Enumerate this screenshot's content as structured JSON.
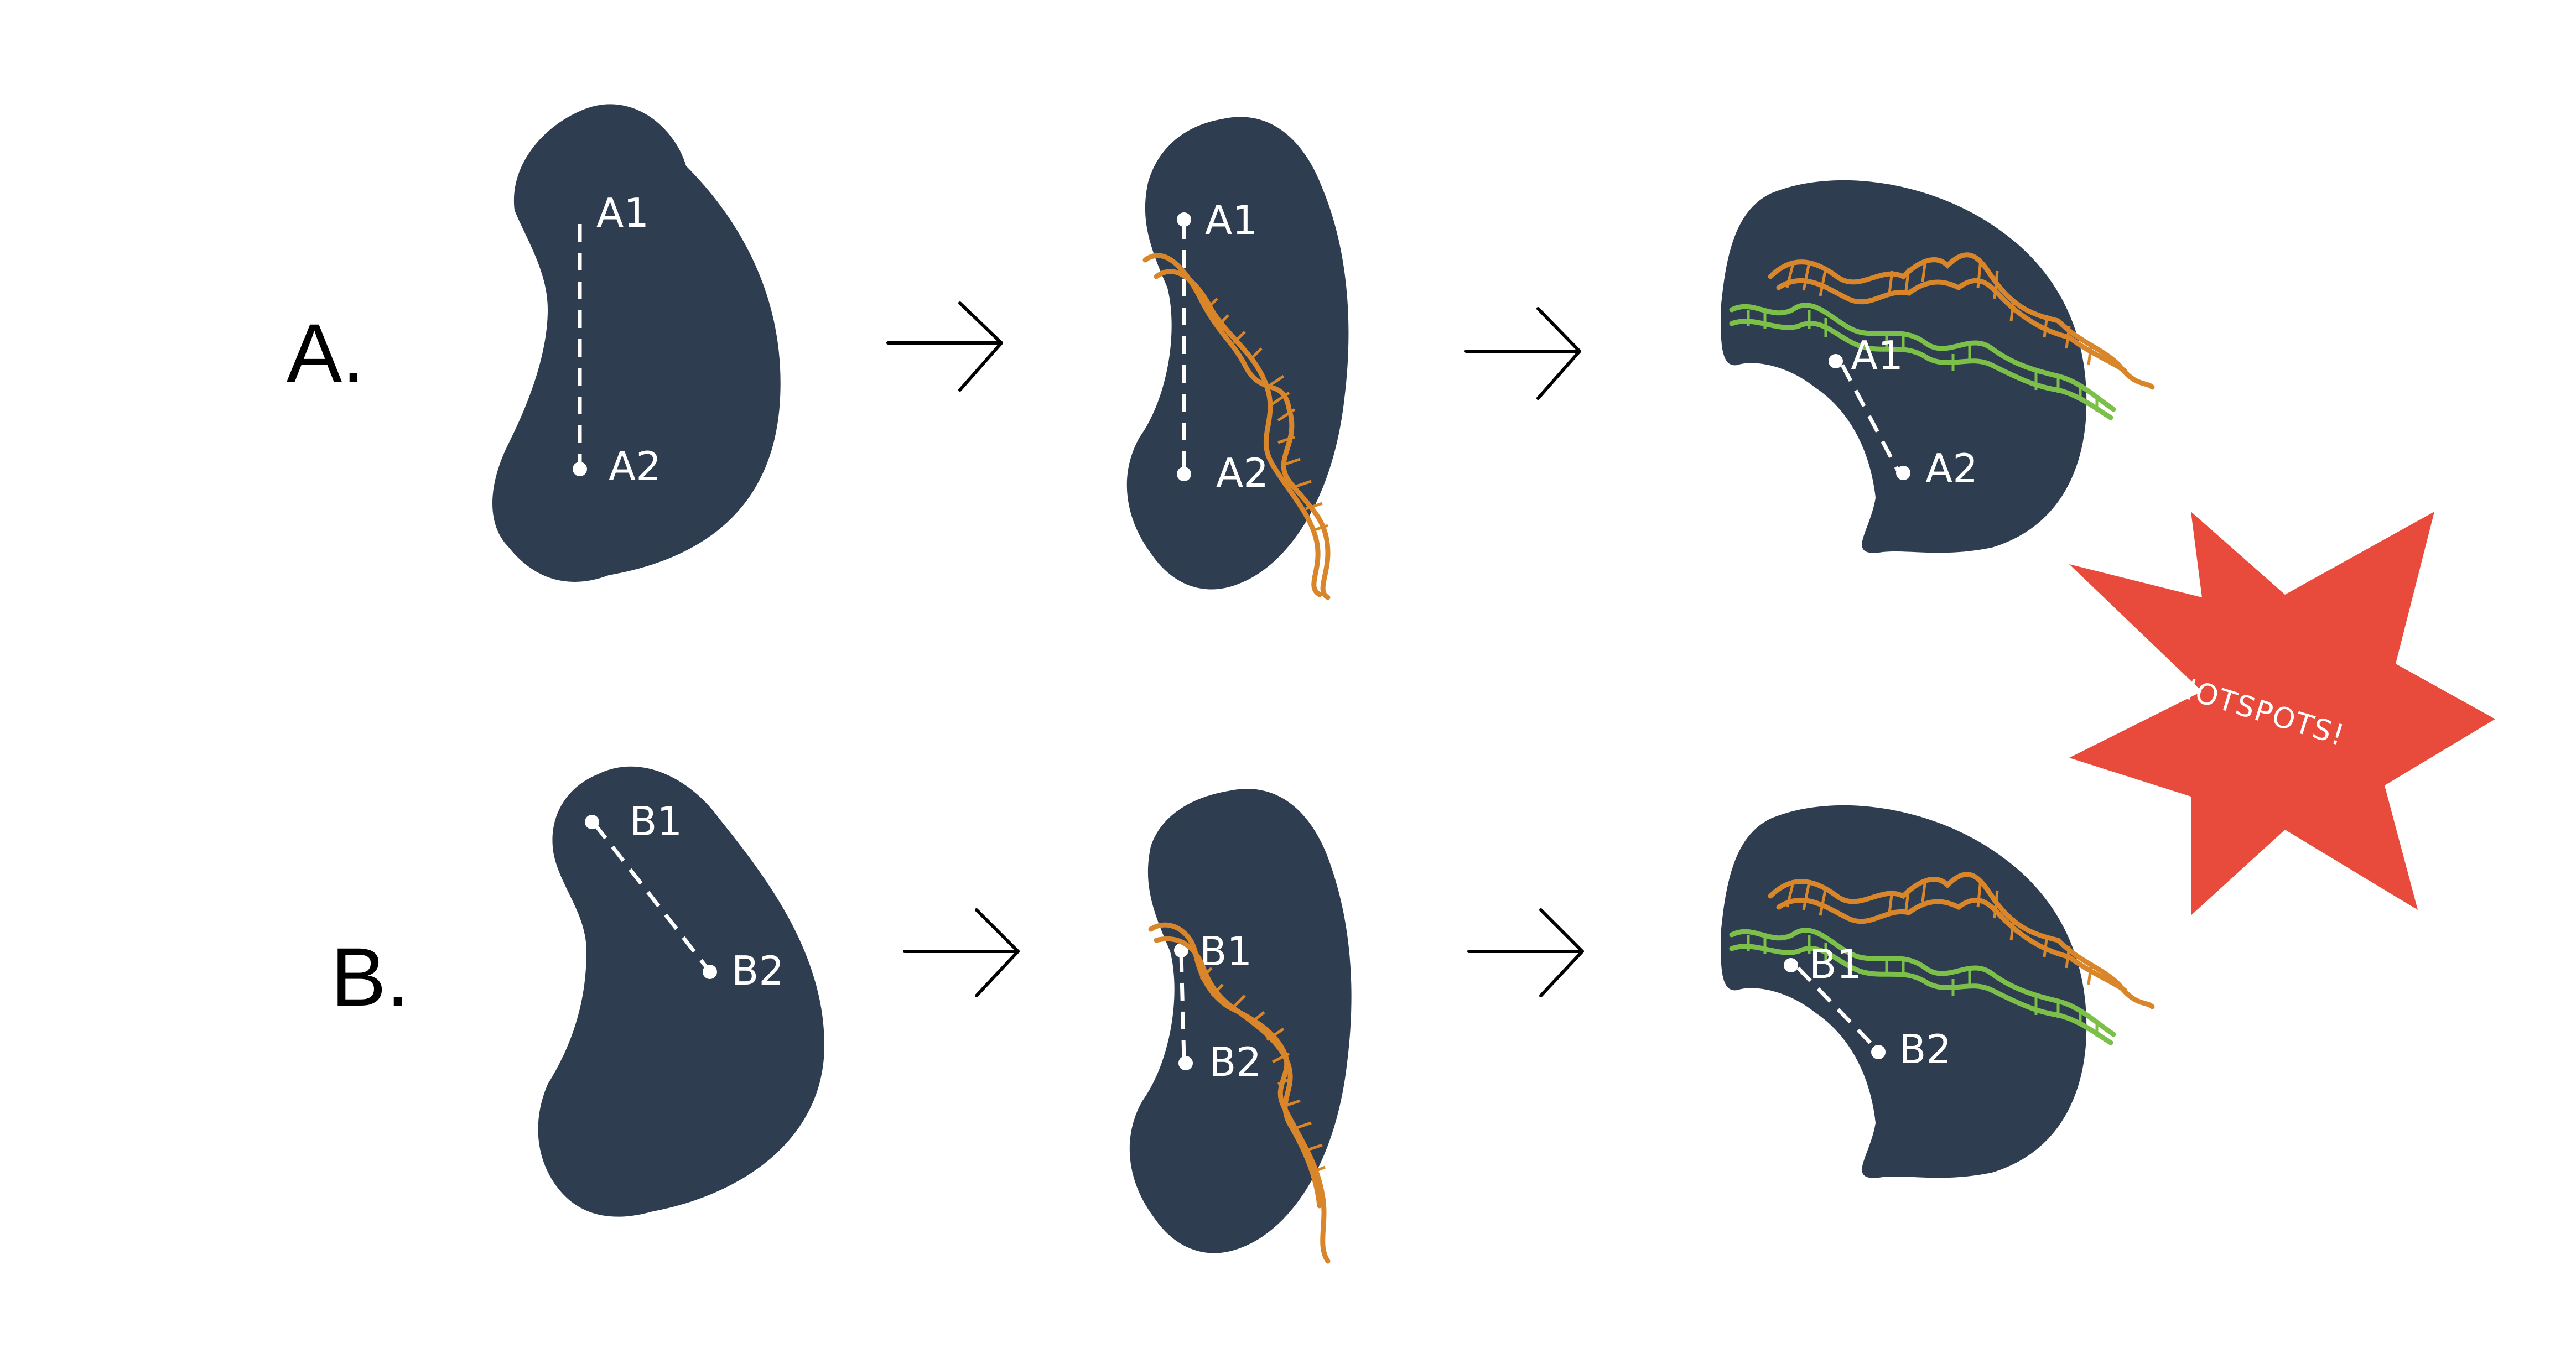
{
  "rows": [
    {
      "label": "A.",
      "points": {
        "p1": "A1",
        "p2": "A2"
      }
    },
    {
      "label": "B.",
      "points": {
        "p1": "B1",
        "p2": "B2"
      }
    }
  ],
  "burst": {
    "label": "HOTSPOTS!"
  },
  "colors": {
    "protein": "#2e3d50",
    "rna_orange": "#d9862a",
    "rna_green": "#7cc04a",
    "burst": "#e84a3b"
  }
}
